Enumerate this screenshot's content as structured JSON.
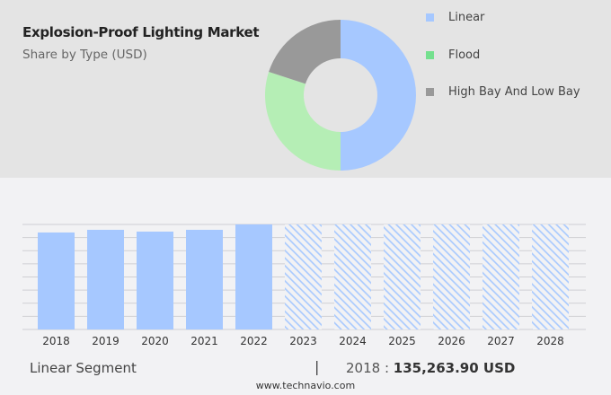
{
  "title": "Explosion-Proof Lighting Market",
  "subtitle": "Share by Type (USD)",
  "chart_data": [
    {
      "type": "pie",
      "variant": "donut",
      "series": [
        {
          "name": "Linear",
          "value": 50,
          "color": "#a6c8ff"
        },
        {
          "name": "Flood",
          "value": 30,
          "color": "#b5eeb5"
        },
        {
          "name": "High Bay And Low Bay",
          "value": 20,
          "color": "#999999"
        }
      ],
      "legend_colors": [
        "#a6c8ff",
        "#74e08e",
        "#999999"
      ],
      "legend_placement": "right"
    },
    {
      "type": "bar",
      "categories": [
        "2018",
        "2019",
        "2020",
        "2021",
        "2022",
        "2023",
        "2024",
        "2025",
        "2026",
        "2027",
        "2028"
      ],
      "values": [
        135263.9,
        139000,
        136500,
        139000,
        146500,
        null,
        null,
        null,
        null,
        null,
        null
      ],
      "forecast_categories": [
        "2023",
        "2024",
        "2025",
        "2026",
        "2027",
        "2028"
      ],
      "bar_color": "#a6c8ff",
      "forecast_style": "hatched",
      "grid": true,
      "ylim": [
        0,
        146500
      ]
    }
  ],
  "footer": {
    "segment_label": "Linear Segment",
    "separator": "|",
    "year": "2018",
    "colon": " : ",
    "value": "135,263.90 USD",
    "source": "www.technavio.com"
  }
}
